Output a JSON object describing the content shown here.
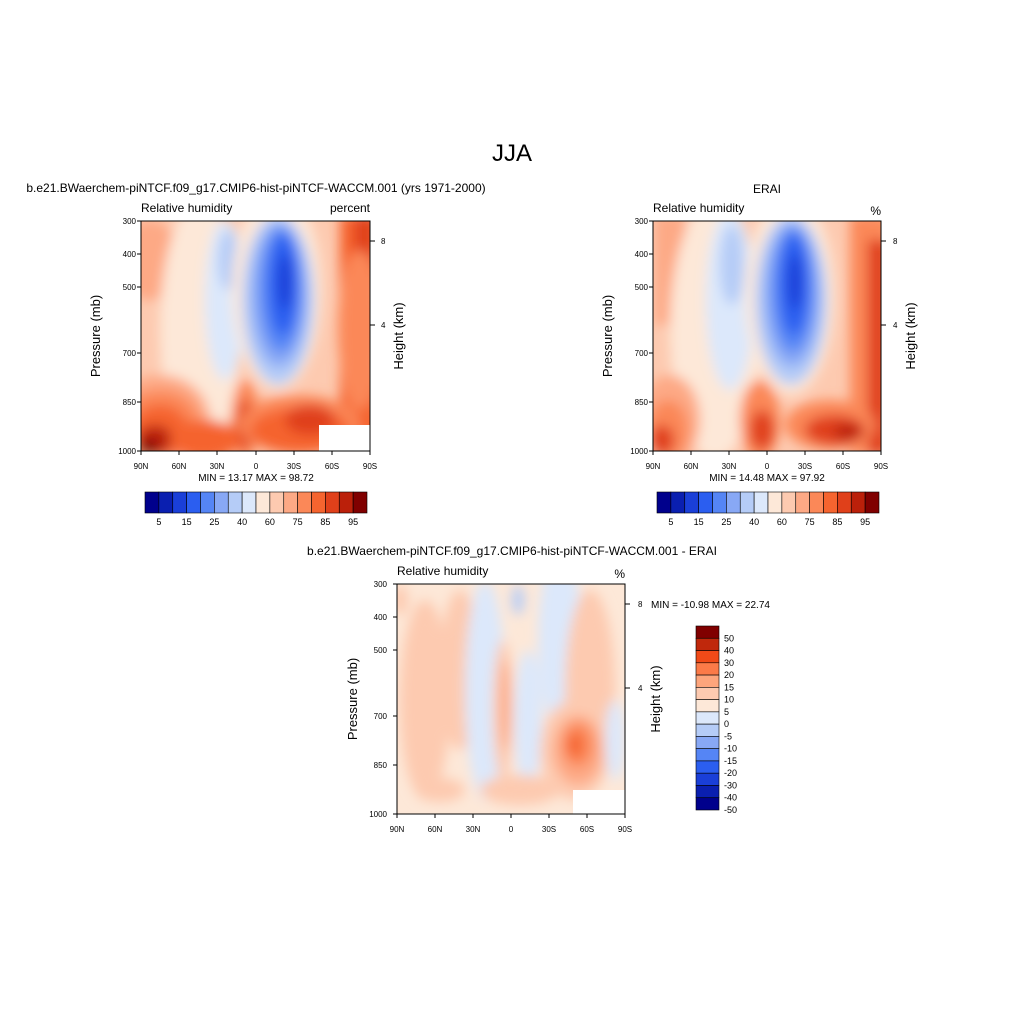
{
  "page": {
    "main_title": "JJA"
  },
  "chart_data": [
    {
      "type": "heatmap",
      "title": "b.e21.BWaerchem-piNTCF.f09_g17.CMIP6-hist-piNTCF-WACCM.001 (yrs 1971-2000)",
      "left_label": "Relative humidity",
      "right_label": "percent",
      "ylabel": "Pressure (mb)",
      "y2label": "Height (km)",
      "xticks": [
        "90N",
        "60N",
        "30N",
        "0",
        "30S",
        "60S",
        "90S"
      ],
      "yticks": [
        300,
        400,
        500,
        700,
        850,
        1000
      ],
      "y2ticks": [
        8,
        4
      ],
      "ylim": [
        1000,
        300
      ],
      "stats_text": "MIN =  13.17  MAX =  98.72",
      "colorbar": {
        "orientation": "horizontal",
        "colors": [
          "#00008c",
          "#0a1fb0",
          "#1a3fd8",
          "#2b5ef0",
          "#5585f5",
          "#88a8f5",
          "#b5ccf7",
          "#dce8fb",
          "#fde8d8",
          "#fdcab0",
          "#fda985",
          "#fb8858",
          "#f5642f",
          "#e0401a",
          "#bb200a",
          "#800000"
        ],
        "labels": [
          "5",
          "15",
          "25",
          "40",
          "60",
          "75",
          "85",
          "95"
        ]
      }
    },
    {
      "type": "heatmap",
      "title": "ERAI",
      "left_label": "Relative humidity",
      "right_label": "%",
      "ylabel": "Pressure (mb)",
      "y2label": "Height (km)",
      "xticks": [
        "90N",
        "60N",
        "30N",
        "0",
        "30S",
        "60S",
        "90S"
      ],
      "yticks": [
        300,
        400,
        500,
        700,
        850,
        1000
      ],
      "y2ticks": [
        8,
        4
      ],
      "ylim": [
        1000,
        300
      ],
      "stats_text": "MIN =  14.48  MAX =  97.92",
      "colorbar": {
        "orientation": "horizontal",
        "colors": [
          "#00008c",
          "#0a1fb0",
          "#1a3fd8",
          "#2b5ef0",
          "#5585f5",
          "#88a8f5",
          "#b5ccf7",
          "#dce8fb",
          "#fde8d8",
          "#fdcab0",
          "#fda985",
          "#fb8858",
          "#f5642f",
          "#e0401a",
          "#bb200a",
          "#800000"
        ],
        "labels": [
          "5",
          "15",
          "25",
          "40",
          "60",
          "75",
          "85",
          "95"
        ]
      }
    },
    {
      "type": "heatmap",
      "title": "b.e21.BWaerchem-piNTCF.f09_g17.CMIP6-hist-piNTCF-WACCM.001 - ERAI",
      "left_label": "Relative humidity",
      "right_label": "%",
      "ylabel": "Pressure (mb)",
      "y2label": "Height (km)",
      "xticks": [
        "90N",
        "60N",
        "30N",
        "0",
        "30S",
        "60S",
        "90S"
      ],
      "yticks": [
        300,
        400,
        500,
        700,
        850,
        1000
      ],
      "y2ticks": [
        8,
        4
      ],
      "ylim": [
        1000,
        300
      ],
      "stats_text": "MIN = -10.98  MAX =  22.74",
      "colorbar": {
        "orientation": "vertical",
        "colors": [
          "#800000",
          "#c0280c",
          "#f04a18",
          "#fb7a48",
          "#fda57c",
          "#fdcab0",
          "#fde8d8",
          "#dce8fb",
          "#b5ccf7",
          "#88a8f5",
          "#5585f5",
          "#2b5ef0",
          "#1a3fd8",
          "#0a1fb0",
          "#00008c"
        ],
        "labels": [
          "50",
          "40",
          "30",
          "20",
          "15",
          "10",
          "5",
          "0",
          "-5",
          "-10",
          "-15",
          "-20",
          "-30",
          "-40",
          "-50"
        ]
      }
    }
  ]
}
